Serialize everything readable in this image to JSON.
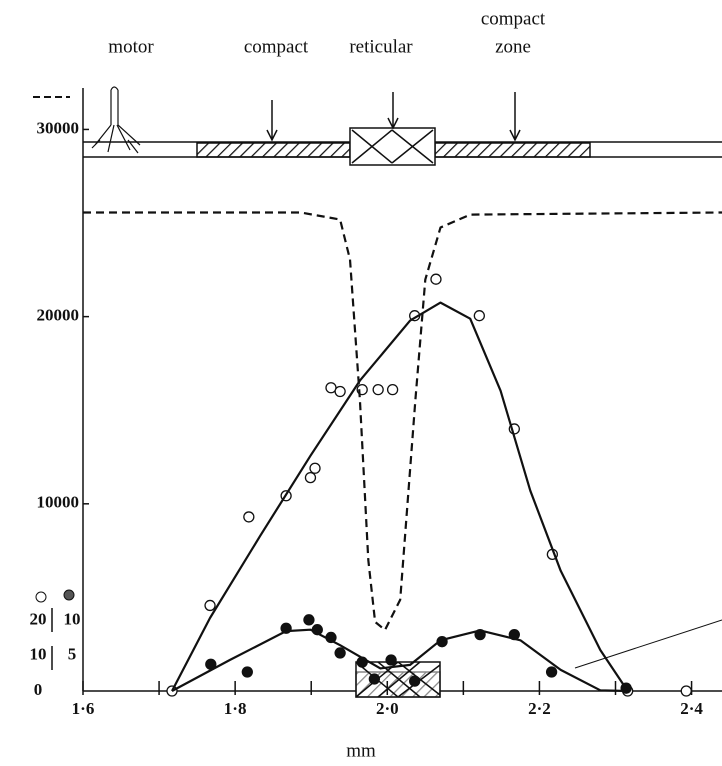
{
  "chart_data": {
    "type": "scatter",
    "x_label": "mm",
    "zone_labels": [
      "motor",
      "compact",
      "reticular",
      "compact",
      "zone"
    ],
    "xlim": [
      1.6,
      2.44
    ],
    "xticks": [
      {
        "value": 1.6,
        "label": "1·6"
      },
      {
        "value": 1.8,
        "label": "1·8"
      },
      {
        "value": 2.0,
        "label": "2·0"
      },
      {
        "value": 2.2,
        "label": "2·2"
      },
      {
        "value": 2.4,
        "label": "2·4"
      }
    ],
    "xminor": [
      1.7,
      1.9,
      2.1,
      2.3
    ],
    "ylim": [
      0,
      32000
    ],
    "yticks": [
      10000,
      20000,
      30000
    ],
    "y2lim": [
      0,
      85
    ],
    "y2ticks": [
      5,
      10
    ],
    "y3lim": [
      0,
      170
    ],
    "y3ticks": [
      0,
      10,
      20
    ],
    "series": [
      {
        "style": "open",
        "axis": "y",
        "color": "#111",
        "x": [
          1.717,
          1.767,
          1.818,
          1.867,
          1.899,
          1.905,
          1.926,
          1.938,
          1.967,
          1.988,
          2.007,
          2.036,
          2.064,
          2.121,
          2.167,
          2.217,
          2.316,
          2.393
        ],
        "values": [
          0,
          4570,
          9300,
          10430,
          11400,
          11900,
          16200,
          16000,
          16100,
          16100,
          16100,
          20050,
          22000,
          20050,
          14000,
          7300,
          0,
          0
        ]
      },
      {
        "style": "filled",
        "axis": "y2",
        "color": "#111",
        "x": [
          1.768,
          1.816,
          1.867,
          1.897,
          1.908,
          1.926,
          1.938,
          1.967,
          1.983,
          2.005,
          2.036,
          2.072,
          2.122,
          2.167,
          2.216,
          2.314
        ],
        "values": [
          3.8,
          2.7,
          8.9,
          10.1,
          8.7,
          7.6,
          5.4,
          4.1,
          1.7,
          4.4,
          1.4,
          7.0,
          8.0,
          8.0,
          2.7,
          0.4
        ]
      },
      {
        "style": "solid-line",
        "axis": "y",
        "color": "#111",
        "x": [
          1.717,
          1.767,
          1.833,
          1.899,
          1.964,
          2.03,
          2.07,
          2.109,
          2.149,
          2.188,
          2.228,
          2.28,
          2.316
        ],
        "values": [
          0,
          3900,
          8290,
          12570,
          16580,
          19790,
          20750,
          19890,
          16040,
          10700,
          6420,
          2190,
          0
        ]
      },
      {
        "style": "solid-line",
        "axis": "y2",
        "color": "#111",
        "x": [
          1.717,
          1.793,
          1.867,
          1.899,
          1.938,
          1.991,
          2.03,
          2.07,
          2.122,
          2.175,
          2.228,
          2.28,
          2.316
        ],
        "values": [
          0,
          4.4,
          8.5,
          8.7,
          6.5,
          3.2,
          3.7,
          7.2,
          8.6,
          7.2,
          3.0,
          0.1,
          0
        ]
      },
      {
        "style": "dashed-line",
        "axis": "y",
        "color": "#111",
        "x": [
          1.6,
          1.886,
          1.938,
          1.951,
          1.964,
          1.975,
          1.984,
          1.997,
          2.017,
          2.037,
          2.05,
          2.07,
          2.109,
          2.44
        ],
        "values": [
          25560,
          25560,
          25190,
          23050,
          15560,
          7000,
          3690,
          3260,
          4870,
          15560,
          21980,
          24760,
          25450,
          25560
        ]
      }
    ]
  }
}
